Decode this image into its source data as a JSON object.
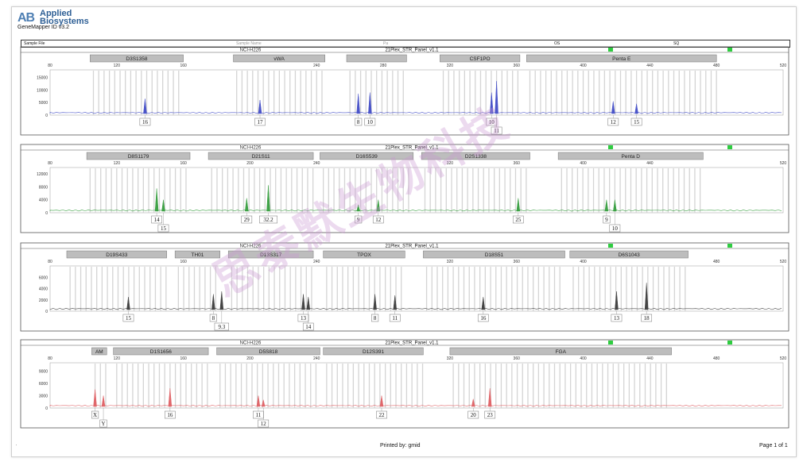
{
  "app": {
    "logo_mark": "AB",
    "logo_line1": "Applied",
    "logo_line2": "Biosystems",
    "title": "GeneMapper ID v3.2"
  },
  "header": {
    "col1": "Sample File",
    "col2": "Sample Name",
    "col3": "Pa",
    "col4": "OS",
    "col5": "SQ"
  },
  "footer": {
    "printed": "Printed by: gmid",
    "page": "Page 1 of 1"
  },
  "watermark": "思泰默生物科技",
  "chart_data": [
    {
      "type": "line",
      "sample": "NCI-H226",
      "panel": "21Plex_STR_Panel_v1.1",
      "color": "#4b55c9",
      "xlim": [
        80,
        520
      ],
      "ylim": [
        0,
        18000
      ],
      "x_ticks": [
        "80",
        "120",
        "160",
        "240",
        "280",
        "320",
        "360",
        "400",
        "440",
        "480",
        "520"
      ],
      "y_ticks": [
        "5000",
        "10000",
        "15000"
      ],
      "markers": [
        {
          "name": "D3S1358",
          "x": [
            104,
            160
          ]
        },
        {
          "name": "vWA",
          "x": [
            190,
            245
          ]
        },
        {
          "name": "",
          "x": [
            258,
            294
          ]
        },
        {
          "name": "CSF1PO",
          "x": [
            314,
            362
          ]
        },
        {
          "name": "Penta E",
          "x": [
            366,
            480
          ]
        }
      ],
      "peaks": [
        {
          "x": 137,
          "h": 6500,
          "label": "16"
        },
        {
          "x": 206,
          "h": 6000,
          "label": "17"
        },
        {
          "x": 265,
          "h": 8500,
          "label": "8"
        },
        {
          "x": 272,
          "h": 9000,
          "label": "10"
        },
        {
          "x": 345,
          "h": 9000,
          "label": "10"
        },
        {
          "x": 348,
          "h": 13500,
          "label": "11"
        },
        {
          "x": 418,
          "h": 5500,
          "label": "12"
        },
        {
          "x": 432,
          "h": 4500,
          "label": "15"
        }
      ]
    },
    {
      "type": "line",
      "sample": "NCI-H226",
      "panel": "21Plex_STR_Panel_v1.1",
      "color": "#3fa247",
      "xlim": [
        80,
        520
      ],
      "ylim": [
        0,
        14000
      ],
      "x_ticks": [
        "80",
        "120",
        "160",
        "200",
        "240",
        "320",
        "360",
        "400",
        "440",
        "520"
      ],
      "y_ticks": [
        "4000",
        "8000",
        "12000"
      ],
      "markers": [
        {
          "name": "D8S1179",
          "x": [
            102,
            164
          ]
        },
        {
          "name": "D21S11",
          "x": [
            175,
            238
          ]
        },
        {
          "name": "D16S539",
          "x": [
            242,
            298
          ]
        },
        {
          "name": "D2S1338",
          "x": [
            303,
            368
          ]
        },
        {
          "name": "Penta D",
          "x": [
            385,
            472
          ]
        }
      ],
      "peaks": [
        {
          "x": 144,
          "h": 7500,
          "label": "14"
        },
        {
          "x": 148,
          "h": 4000,
          "label": "15"
        },
        {
          "x": 198,
          "h": 4500,
          "label": "29"
        },
        {
          "x": 211,
          "h": 8500,
          "label": "32.2"
        },
        {
          "x": 265,
          "h": 2500,
          "label": "9"
        },
        {
          "x": 277,
          "h": 4000,
          "label": "12"
        },
        {
          "x": 361,
          "h": 4500,
          "label": "25"
        },
        {
          "x": 414,
          "h": 4000,
          "label": "9"
        },
        {
          "x": 419,
          "h": 4000,
          "label": "10"
        }
      ]
    },
    {
      "type": "line",
      "sample": "NCI-H226",
      "panel": "21Plex_STR_Panel_v1.1",
      "color": "#444444",
      "xlim": [
        80,
        520
      ],
      "ylim": [
        0,
        8000
      ],
      "x_ticks": [
        "80",
        "160",
        "240",
        "320",
        "360",
        "400",
        "480",
        "520"
      ],
      "y_ticks": [
        "2000",
        "4000",
        "6000"
      ],
      "markers": [
        {
          "name": "D19S433",
          "x": [
            90,
            150
          ]
        },
        {
          "name": "TH01",
          "x": [
            155,
            182
          ]
        },
        {
          "name": "D13S317",
          "x": [
            187,
            238
          ]
        },
        {
          "name": "TPOX",
          "x": [
            244,
            293
          ]
        },
        {
          "name": "D18S51",
          "x": [
            304,
            389
          ]
        },
        {
          "name": "D6S1043",
          "x": [
            392,
            463
          ]
        }
      ],
      "peaks": [
        {
          "x": 127,
          "h": 2500,
          "label": "15"
        },
        {
          "x": 178,
          "h": 3000,
          "label": "8"
        },
        {
          "x": 183,
          "h": 3500,
          "label": "9.3"
        },
        {
          "x": 232,
          "h": 3000,
          "label": "13"
        },
        {
          "x": 235,
          "h": 2500,
          "label": "14"
        },
        {
          "x": 275,
          "h": 3000,
          "label": "8"
        },
        {
          "x": 287,
          "h": 2800,
          "label": "11"
        },
        {
          "x": 340,
          "h": 2500,
          "label": "16"
        },
        {
          "x": 420,
          "h": 3500,
          "label": "13"
        },
        {
          "x": 438,
          "h": 5000,
          "label": "18"
        }
      ]
    },
    {
      "type": "line",
      "sample": "NCI-H226",
      "panel": "21Plex_STR_Panel_v1.1",
      "color": "#e0676b",
      "xlim": [
        80,
        520
      ],
      "ylim": [
        0,
        11000
      ],
      "x_ticks": [
        "80",
        "120",
        "160",
        "200",
        "240",
        "320",
        "360",
        "400",
        "440",
        "480",
        "520"
      ],
      "y_ticks": [
        "3000",
        "6000",
        "9000"
      ],
      "markers": [
        {
          "name": "AM",
          "x": [
            105,
            114
          ]
        },
        {
          "name": "D1S1656",
          "x": [
            118,
            175
          ]
        },
        {
          "name": "D5S818",
          "x": [
            180,
            242
          ]
        },
        {
          "name": "D12S391",
          "x": [
            244,
            304
          ]
        },
        {
          "name": "FGA",
          "x": [
            320,
            453
          ]
        }
      ],
      "peaks": [
        {
          "x": 107,
          "h": 4500,
          "label": "X"
        },
        {
          "x": 112,
          "h": 3000,
          "label": "Y"
        },
        {
          "x": 152,
          "h": 4800,
          "label": "16"
        },
        {
          "x": 205,
          "h": 3000,
          "label": "11"
        },
        {
          "x": 208,
          "h": 2000,
          "label": "12"
        },
        {
          "x": 279,
          "h": 3000,
          "label": "22"
        },
        {
          "x": 334,
          "h": 2200,
          "label": "20"
        },
        {
          "x": 344,
          "h": 4800,
          "label": "23"
        }
      ]
    }
  ]
}
